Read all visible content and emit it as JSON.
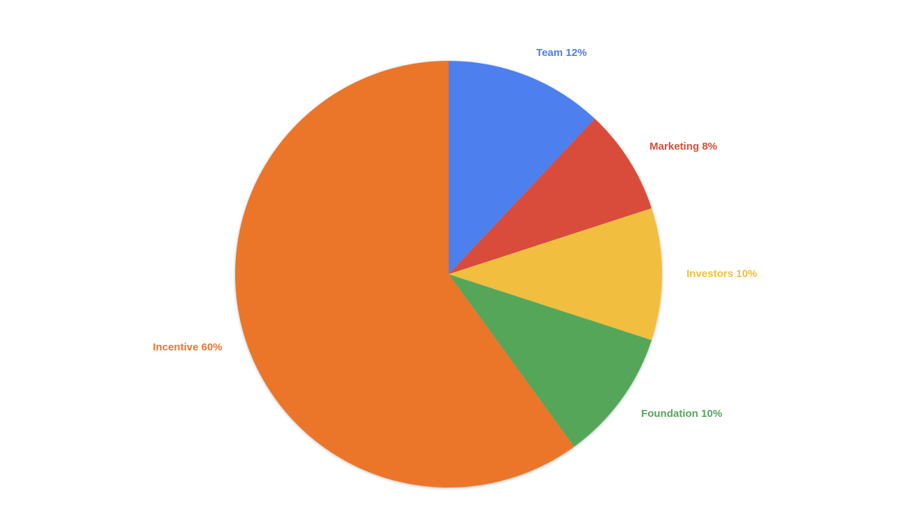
{
  "chart_data": {
    "type": "pie",
    "categories": [
      "Team",
      "Marketing",
      "Investors",
      "Foundation",
      "Incentive"
    ],
    "values": [
      12,
      8,
      10,
      10,
      60
    ],
    "value_labels": [
      "12%",
      "8%",
      "10%",
      "10%",
      "60%"
    ],
    "colors": [
      "#4e80ee",
      "#d94c3a",
      "#f1be40",
      "#57a65a",
      "#eb762c"
    ]
  }
}
